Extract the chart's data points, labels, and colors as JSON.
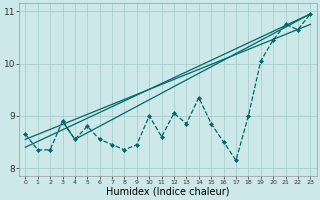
{
  "xlabel": "Humidex (Indice chaleur)",
  "background_color": "#cce8e8",
  "line_color": "#006868",
  "grid_color": "#aacece",
  "xlim": [
    -0.5,
    23.5
  ],
  "ylim": [
    7.85,
    11.15
  ],
  "yticks": [
    8,
    9,
    10,
    11
  ],
  "xticks": [
    0,
    1,
    2,
    3,
    4,
    5,
    6,
    7,
    8,
    9,
    10,
    11,
    12,
    13,
    14,
    15,
    16,
    17,
    18,
    19,
    20,
    21,
    22,
    23
  ],
  "main_x": [
    0,
    1,
    2,
    3,
    4,
    5,
    6,
    7,
    8,
    9,
    10,
    11,
    12,
    13,
    14,
    15,
    16,
    17,
    18,
    19,
    20,
    21,
    22,
    23
  ],
  "main_y": [
    8.65,
    8.35,
    8.35,
    8.9,
    8.55,
    8.8,
    8.55,
    8.45,
    8.35,
    8.45,
    9.0,
    8.6,
    9.05,
    8.85,
    9.35,
    8.85,
    8.5,
    8.15,
    9.0,
    10.05,
    10.45,
    10.75,
    10.65,
    10.95
  ],
  "sline1_x": [
    0,
    23
  ],
  "sline1_y": [
    8.4,
    10.95
  ],
  "sline2_x": [
    0,
    23
  ],
  "sline2_y": [
    8.55,
    10.75
  ],
  "sline3_x": [
    3,
    4,
    23
  ],
  "sline3_y": [
    8.9,
    8.55,
    10.95
  ],
  "figsize": [
    3.2,
    2.0
  ],
  "dpi": 100
}
